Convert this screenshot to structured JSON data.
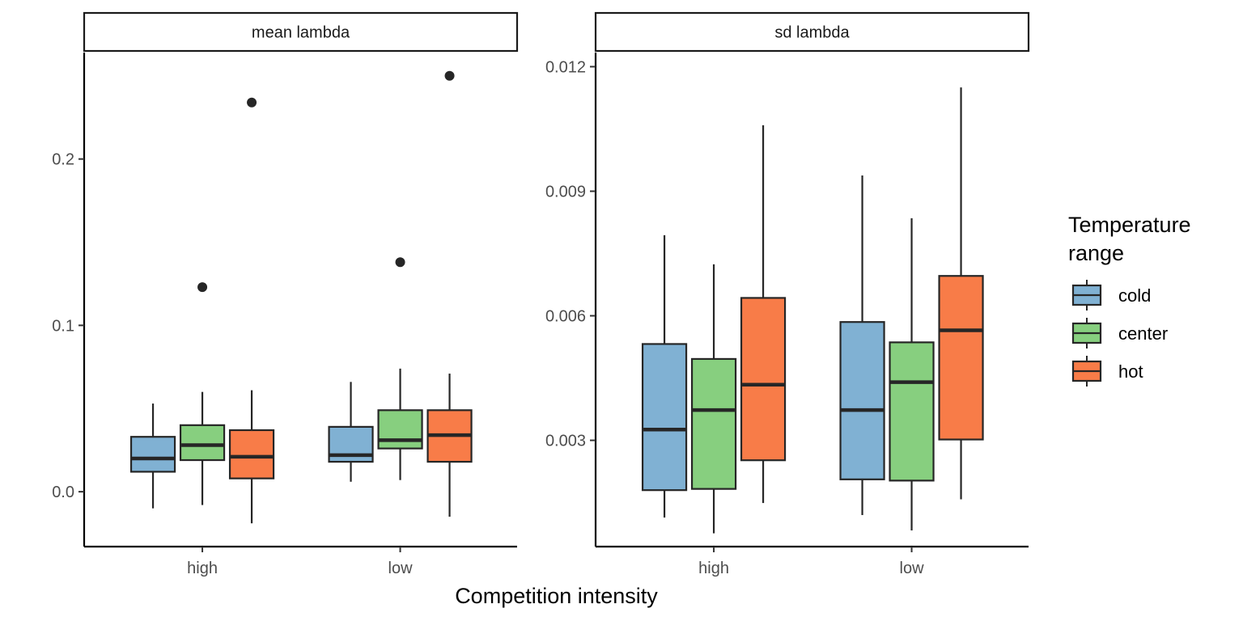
{
  "chart_data": {
    "type": "boxplot",
    "xlabel": "Competition intensity",
    "legend": {
      "title_line1": "Temperature",
      "title_line2": "range",
      "placement": "right",
      "entries": [
        "cold",
        "center",
        "hot"
      ]
    },
    "colors": {
      "cold": "#80B1D3",
      "center": "#87CF7F",
      "hot": "#F87C48",
      "outline": "#262626"
    },
    "categories": [
      "high",
      "low"
    ],
    "grid": false,
    "panels": [
      {
        "strip": "mean lambda",
        "ylim": [
          -0.033,
          0.264
        ],
        "yticks": [
          0.0,
          0.1,
          0.2
        ],
        "ytick_labels": [
          "0.0",
          "0.1",
          "0.2"
        ],
        "boxes": [
          {
            "category": "high",
            "group": "cold",
            "whisker_low": -0.01,
            "q1": 0.012,
            "median": 0.02,
            "q3": 0.033,
            "whisker_high": 0.053,
            "outliers": []
          },
          {
            "category": "high",
            "group": "center",
            "whisker_low": -0.008,
            "q1": 0.019,
            "median": 0.028,
            "q3": 0.04,
            "whisker_high": 0.06,
            "outliers": [
              0.123
            ]
          },
          {
            "category": "high",
            "group": "hot",
            "whisker_low": -0.019,
            "q1": 0.008,
            "median": 0.021,
            "q3": 0.037,
            "whisker_high": 0.061,
            "outliers": [
              0.234
            ]
          },
          {
            "category": "low",
            "group": "cold",
            "whisker_low": 0.006,
            "q1": 0.018,
            "median": 0.022,
            "q3": 0.039,
            "whisker_high": 0.066,
            "outliers": []
          },
          {
            "category": "low",
            "group": "center",
            "whisker_low": 0.007,
            "q1": 0.026,
            "median": 0.031,
            "q3": 0.049,
            "whisker_high": 0.074,
            "outliers": [
              0.138
            ]
          },
          {
            "category": "low",
            "group": "hot",
            "whisker_low": -0.015,
            "q1": 0.018,
            "median": 0.034,
            "q3": 0.049,
            "whisker_high": 0.071,
            "outliers": [
              0.25
            ]
          }
        ]
      },
      {
        "strip": "sd lambda",
        "ylim": [
          0.00044,
          0.01234
        ],
        "yticks": [
          0.003,
          0.006,
          0.009,
          0.012
        ],
        "ytick_labels": [
          "0.003",
          "0.006",
          "0.009",
          "0.012"
        ],
        "boxes": [
          {
            "category": "high",
            "group": "cold",
            "whisker_low": 0.00114,
            "q1": 0.0018,
            "median": 0.00326,
            "q3": 0.00532,
            "whisker_high": 0.00794,
            "outliers": []
          },
          {
            "category": "high",
            "group": "center",
            "whisker_low": 0.00076,
            "q1": 0.00183,
            "median": 0.00373,
            "q3": 0.00496,
            "whisker_high": 0.00724,
            "outliers": []
          },
          {
            "category": "high",
            "group": "hot",
            "whisker_low": 0.00149,
            "q1": 0.00252,
            "median": 0.00434,
            "q3": 0.00643,
            "whisker_high": 0.01059,
            "outliers": []
          },
          {
            "category": "low",
            "group": "cold",
            "whisker_low": 0.0012,
            "q1": 0.00206,
            "median": 0.00373,
            "q3": 0.00585,
            "whisker_high": 0.00938,
            "outliers": []
          },
          {
            "category": "low",
            "group": "center",
            "whisker_low": 0.00083,
            "q1": 0.00203,
            "median": 0.0044,
            "q3": 0.00536,
            "whisker_high": 0.00835,
            "outliers": []
          },
          {
            "category": "low",
            "group": "hot",
            "whisker_low": 0.00158,
            "q1": 0.00302,
            "median": 0.00565,
            "q3": 0.00696,
            "whisker_high": 0.0115,
            "outliers": []
          }
        ]
      }
    ]
  }
}
